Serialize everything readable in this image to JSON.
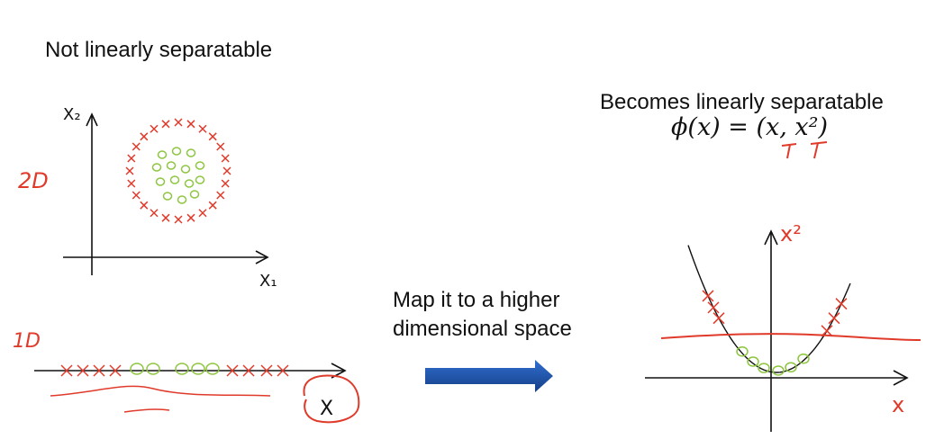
{
  "left_panel": {
    "title": "Not linearly separatable",
    "label_2d": "2D",
    "axis_x": "X₁",
    "axis_y": "X₂",
    "label_1d": "1D",
    "axis_1d": "X",
    "inner_class_marker": "o",
    "outer_class_marker": "x"
  },
  "middle": {
    "caption_line1": "Map it to a higher",
    "caption_line2": "dimensional space",
    "arrow_color": "#1f4e9c"
  },
  "right_panel": {
    "title": "Becomes linearly separatable",
    "formula": "ϕ(x) = (x, x²)",
    "axis_y": "x²",
    "axis_x": "x"
  },
  "colors": {
    "red": "#e03a2a",
    "green": "#8dc63f",
    "ink": "#111111",
    "arrow_dark": "#163e86",
    "arrow_light": "#2f6fcf"
  }
}
